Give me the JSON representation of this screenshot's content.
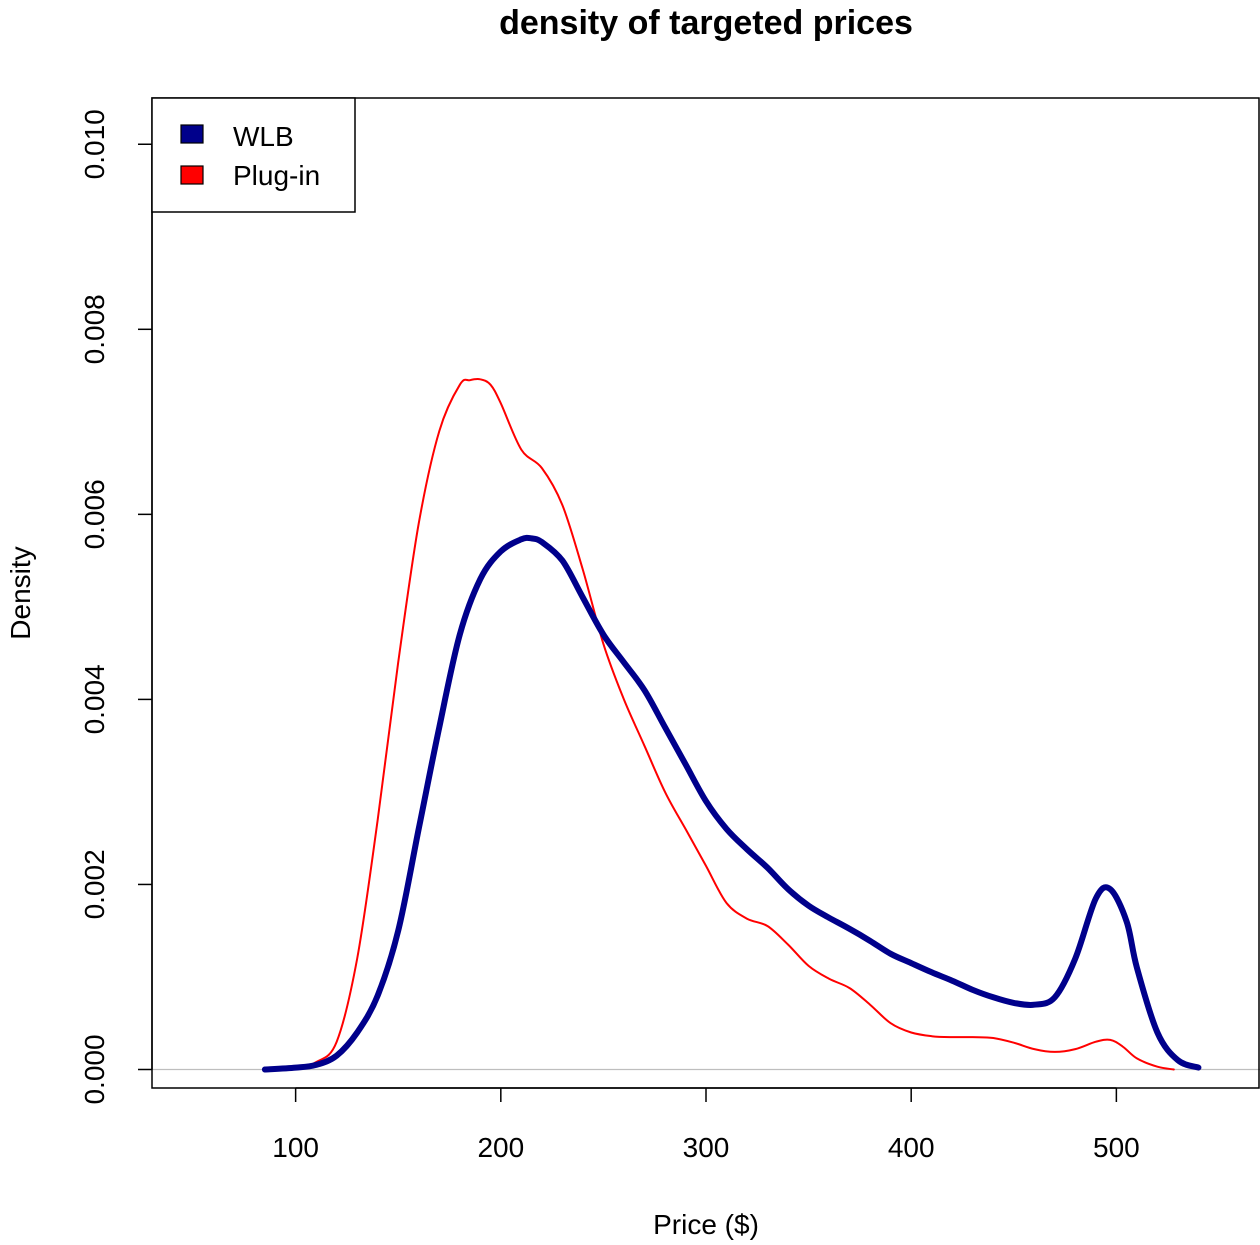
{
  "chart_data": {
    "type": "line",
    "title": "density of targeted prices",
    "xlabel": "Price ($)",
    "ylabel": "Density",
    "xlim": [
      30,
      570
    ],
    "ylim": [
      -0.0002,
      0.0105
    ],
    "xticks": [
      100,
      200,
      300,
      400,
      500
    ],
    "xtick_labels": [
      "100",
      "200",
      "300",
      "400",
      "500"
    ],
    "yticks": [
      0.0,
      0.002,
      0.004,
      0.006,
      0.008,
      0.01
    ],
    "ytick_labels": [
      "0.000",
      "0.002",
      "0.004",
      "0.006",
      "0.008",
      "0.010"
    ],
    "legend_position": "top-left",
    "baseline_color": "#bebebe",
    "series": [
      {
        "name": "WLB",
        "color": "#00008B",
        "x": [
          85,
          100,
          110,
          120,
          130,
          140,
          150,
          160,
          170,
          180,
          190,
          200,
          210,
          215,
          220,
          230,
          240,
          250,
          260,
          270,
          280,
          290,
          300,
          310,
          320,
          330,
          340,
          350,
          360,
          370,
          380,
          390,
          400,
          410,
          420,
          430,
          440,
          450,
          460,
          470,
          480,
          490,
          497,
          505,
          510,
          520,
          530,
          540
        ],
        "y": [
          0.0,
          2e-05,
          5e-05,
          0.00015,
          0.0004,
          0.0008,
          0.0015,
          0.0026,
          0.0037,
          0.0047,
          0.0053,
          0.0056,
          0.00573,
          0.00574,
          0.0057,
          0.0055,
          0.0051,
          0.0047,
          0.0044,
          0.0041,
          0.0037,
          0.0033,
          0.0029,
          0.0026,
          0.00238,
          0.00218,
          0.00195,
          0.00177,
          0.00164,
          0.00152,
          0.00139,
          0.00125,
          0.00115,
          0.00105,
          0.00096,
          0.00086,
          0.00078,
          0.00072,
          0.0007,
          0.00078,
          0.0012,
          0.00185,
          0.00195,
          0.0016,
          0.0011,
          0.0004,
          0.0001,
          2e-05
        ]
      },
      {
        "name": "Plug-in",
        "color": "#FF0000",
        "x": [
          85,
          100,
          110,
          120,
          130,
          140,
          150,
          160,
          170,
          180,
          185,
          190,
          195,
          200,
          210,
          220,
          230,
          240,
          250,
          260,
          270,
          280,
          290,
          300,
          310,
          320,
          330,
          340,
          350,
          360,
          370,
          380,
          390,
          400,
          410,
          420,
          430,
          440,
          450,
          460,
          470,
          480,
          490,
          497,
          503,
          510,
          520,
          528
        ],
        "y": [
          0.0,
          2e-05,
          8e-05,
          0.0003,
          0.0012,
          0.0027,
          0.0044,
          0.0059,
          0.0069,
          0.0074,
          0.00745,
          0.00746,
          0.0074,
          0.0072,
          0.0067,
          0.0065,
          0.0061,
          0.0054,
          0.0046,
          0.004,
          0.0035,
          0.003,
          0.0026,
          0.0022,
          0.0018,
          0.00163,
          0.00155,
          0.00135,
          0.00112,
          0.00098,
          0.00088,
          0.0007,
          0.0005,
          0.0004,
          0.00036,
          0.00035,
          0.00035,
          0.00034,
          0.00029,
          0.00022,
          0.00019,
          0.00022,
          0.0003,
          0.00032,
          0.00025,
          0.00012,
          3e-05,
          0.0
        ]
      }
    ]
  }
}
